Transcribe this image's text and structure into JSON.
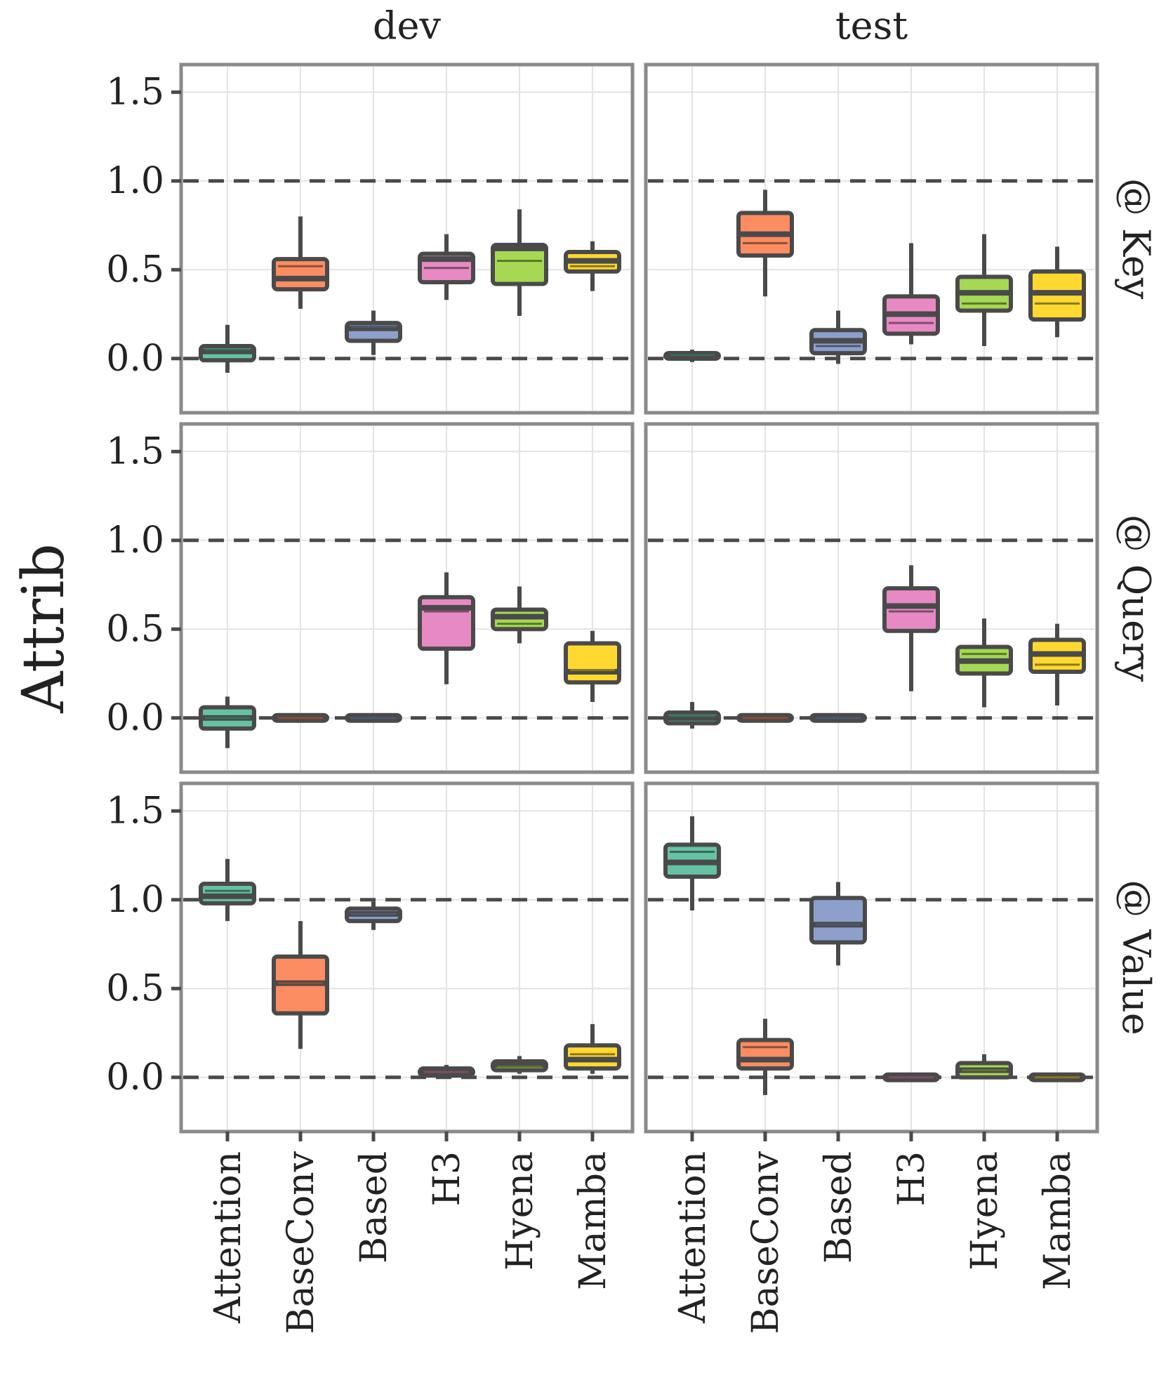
{
  "chart_data": {
    "type": "box",
    "ylabel": "Attrib",
    "xlabel": "",
    "ylim": [
      -0.25,
      1.6
    ],
    "yticks": [
      "0.0",
      "0.5",
      "1.0",
      "1.5"
    ],
    "reference_lines": [
      0.0,
      1.0
    ],
    "categories": [
      "Attention",
      "BaseConv",
      "Based",
      "H3",
      "Hyena",
      "Mamba"
    ],
    "category_colors": [
      "#66c2a5",
      "#fc8d62",
      "#8da0cb",
      "#e78ac3",
      "#a6d854",
      "#ffd92f"
    ],
    "columns": [
      "dev",
      "test"
    ],
    "rows": [
      "@ Key",
      "@ Query",
      "@ Value"
    ],
    "grid": true,
    "panels": [
      {
        "row": "@ Key",
        "column": "dev",
        "boxes": [
          {
            "min": -0.08,
            "q1": -0.01,
            "median": 0.04,
            "mean": 0.05,
            "q3": 0.07,
            "max": 0.19
          },
          {
            "min": 0.28,
            "q1": 0.39,
            "median": 0.45,
            "mean": 0.52,
            "q3": 0.56,
            "max": 0.8
          },
          {
            "min": 0.02,
            "q1": 0.1,
            "median": 0.17,
            "mean": 0.18,
            "q3": 0.2,
            "max": 0.27
          },
          {
            "min": 0.33,
            "q1": 0.43,
            "median": 0.56,
            "mean": 0.51,
            "q3": 0.59,
            "max": 0.7
          },
          {
            "min": 0.24,
            "q1": 0.42,
            "median": 0.62,
            "mean": 0.55,
            "q3": 0.64,
            "max": 0.84
          },
          {
            "min": 0.38,
            "q1": 0.49,
            "median": 0.55,
            "mean": 0.52,
            "q3": 0.6,
            "max": 0.66
          }
        ]
      },
      {
        "row": "@ Key",
        "column": "test",
        "boxes": [
          {
            "min": -0.02,
            "q1": 0.0,
            "median": 0.01,
            "mean": 0.02,
            "q3": 0.03,
            "max": 0.05
          },
          {
            "min": 0.35,
            "q1": 0.58,
            "median": 0.7,
            "mean": 0.65,
            "q3": 0.82,
            "max": 0.95
          },
          {
            "min": -0.03,
            "q1": 0.03,
            "median": 0.1,
            "mean": 0.07,
            "q3": 0.16,
            "max": 0.27
          },
          {
            "min": 0.08,
            "q1": 0.14,
            "median": 0.25,
            "mean": 0.2,
            "q3": 0.35,
            "max": 0.65
          },
          {
            "min": 0.07,
            "q1": 0.27,
            "median": 0.37,
            "mean": 0.31,
            "q3": 0.46,
            "max": 0.7
          },
          {
            "min": 0.12,
            "q1": 0.22,
            "median": 0.37,
            "mean": 0.31,
            "q3": 0.49,
            "max": 0.63
          }
        ]
      },
      {
        "row": "@ Query",
        "column": "dev",
        "boxes": [
          {
            "min": -0.17,
            "q1": -0.06,
            "median": 0.0,
            "mean": 0.0,
            "q3": 0.06,
            "max": 0.12
          },
          {
            "min": -0.01,
            "q1": -0.01,
            "median": 0.0,
            "mean": 0.0,
            "q3": 0.01,
            "max": 0.01
          },
          {
            "min": -0.01,
            "q1": -0.01,
            "median": 0.0,
            "mean": 0.0,
            "q3": 0.01,
            "max": 0.01
          },
          {
            "min": 0.19,
            "q1": 0.39,
            "median": 0.62,
            "mean": 0.6,
            "q3": 0.68,
            "max": 0.82
          },
          {
            "min": 0.42,
            "q1": 0.5,
            "median": 0.57,
            "mean": 0.53,
            "q3": 0.61,
            "max": 0.74
          },
          {
            "min": 0.09,
            "q1": 0.2,
            "median": 0.26,
            "mean": 0.27,
            "q3": 0.42,
            "max": 0.49
          }
        ]
      },
      {
        "row": "@ Query",
        "column": "test",
        "boxes": [
          {
            "min": -0.06,
            "q1": -0.03,
            "median": 0.0,
            "mean": 0.01,
            "q3": 0.03,
            "max": 0.09
          },
          {
            "min": -0.01,
            "q1": -0.01,
            "median": 0.0,
            "mean": 0.0,
            "q3": 0.01,
            "max": 0.01
          },
          {
            "min": -0.01,
            "q1": -0.01,
            "median": 0.0,
            "mean": 0.0,
            "q3": 0.01,
            "max": 0.01
          },
          {
            "min": 0.15,
            "q1": 0.49,
            "median": 0.63,
            "mean": 0.6,
            "q3": 0.73,
            "max": 0.86
          },
          {
            "min": 0.06,
            "q1": 0.25,
            "median": 0.32,
            "mean": 0.36,
            "q3": 0.4,
            "max": 0.56
          },
          {
            "min": 0.07,
            "q1": 0.26,
            "median": 0.36,
            "mean": 0.3,
            "q3": 0.44,
            "max": 0.53
          }
        ]
      },
      {
        "row": "@ Value",
        "column": "dev",
        "boxes": [
          {
            "min": 0.88,
            "q1": 0.98,
            "median": 1.02,
            "mean": 1.05,
            "q3": 1.09,
            "max": 1.23
          },
          {
            "min": 0.16,
            "q1": 0.36,
            "median": 0.53,
            "mean": 0.53,
            "q3": 0.68,
            "max": 0.88
          },
          {
            "min": 0.83,
            "q1": 0.88,
            "median": 0.92,
            "mean": 0.92,
            "q3": 0.95,
            "max": 0.99
          },
          {
            "min": 0.0,
            "q1": 0.01,
            "median": 0.03,
            "mean": 0.03,
            "q3": 0.05,
            "max": 0.07
          },
          {
            "min": 0.02,
            "q1": 0.04,
            "median": 0.07,
            "mean": 0.06,
            "q3": 0.09,
            "max": 0.12
          },
          {
            "min": 0.02,
            "q1": 0.05,
            "median": 0.1,
            "mean": 0.13,
            "q3": 0.18,
            "max": 0.3
          }
        ]
      },
      {
        "row": "@ Value",
        "column": "test",
        "boxes": [
          {
            "min": 0.94,
            "q1": 1.13,
            "median": 1.21,
            "mean": 1.27,
            "q3": 1.31,
            "max": 1.47
          },
          {
            "min": -0.1,
            "q1": 0.05,
            "median": 0.1,
            "mean": 0.17,
            "q3": 0.21,
            "max": 0.33
          },
          {
            "min": 0.63,
            "q1": 0.76,
            "median": 0.86,
            "mean": 0.86,
            "q3": 1.01,
            "max": 1.1
          },
          {
            "min": -0.01,
            "q1": -0.01,
            "median": 0.0,
            "mean": 0.0,
            "q3": 0.01,
            "max": 0.01
          },
          {
            "min": 0.0,
            "q1": 0.0,
            "median": 0.04,
            "mean": 0.04,
            "q3": 0.08,
            "max": 0.13
          },
          {
            "min": -0.02,
            "q1": -0.01,
            "median": 0.0,
            "mean": 0.0,
            "q3": 0.01,
            "max": 0.02
          }
        ]
      }
    ]
  }
}
